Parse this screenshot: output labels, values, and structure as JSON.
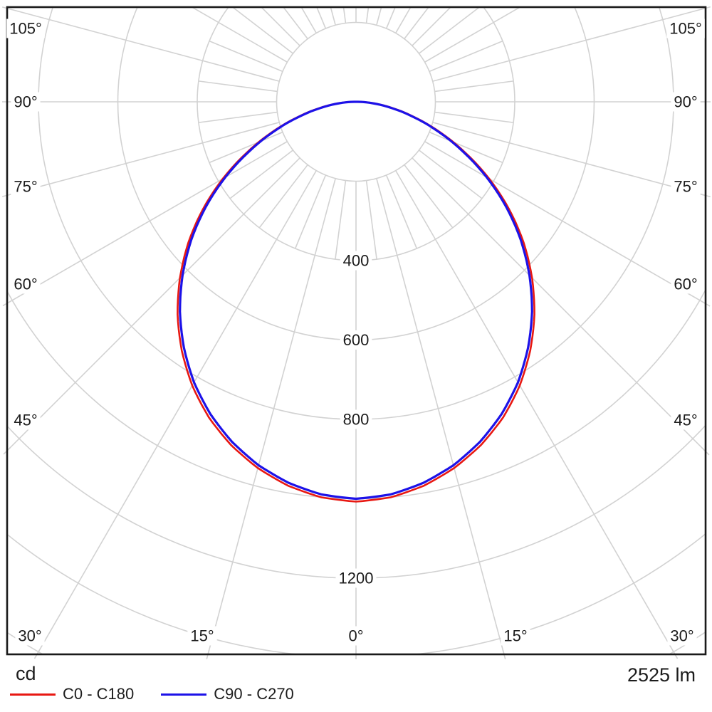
{
  "chart_data": {
    "type": "polar_intensity_distribution",
    "radial_unit": "cd",
    "luminous_flux": "2525 lm",
    "angles_deg": [
      0,
      5,
      10,
      15,
      20,
      25,
      30,
      35,
      40,
      45,
      50,
      55,
      60,
      65,
      70,
      75,
      80,
      85,
      90
    ],
    "series": [
      {
        "name": "C0 - C180",
        "color": "#e81812",
        "values_cd": [
          1004,
          997,
          979,
          952,
          917,
          874,
          822,
          762,
          696,
          624,
          548,
          467,
          384,
          301,
          224,
          153,
          93,
          43,
          5
        ]
      },
      {
        "name": "C90 - C270",
        "color": "#1d12e8",
        "values_cd": [
          1000,
          993,
          975,
          948,
          912,
          868,
          816,
          756,
          690,
          618,
          542,
          462,
          380,
          298,
          222,
          152,
          92,
          42,
          5
        ]
      }
    ],
    "grid": {
      "ring_step_cd": 200,
      "rings_cd": [
        200,
        400,
        600,
        800,
        1000,
        1200,
        1400,
        1600
      ],
      "major_angle_step_deg": 15,
      "minor_angle_step_deg": 7.5,
      "minor_lines_between_cd": [
        200,
        400
      ]
    },
    "radial_tick_labels": [
      "400",
      "600",
      "800",
      "1200"
    ],
    "radial_tick_values": [
      400,
      600,
      800,
      1200
    ],
    "angle_labels_left": [
      "105°",
      "90°",
      "75°",
      "60°",
      "45°"
    ],
    "angle_labels_right": [
      "105°",
      "90°",
      "75°",
      "60°",
      "45°"
    ],
    "angle_labels_bottom": [
      "30°",
      "15°",
      "0°",
      "15°",
      "30°"
    ]
  },
  "legend": {
    "items": [
      {
        "label": "C0 - C180",
        "color": "#e81812"
      },
      {
        "label": "C90 - C270",
        "color": "#1d12e8"
      }
    ]
  },
  "footer": {
    "unit": "cd",
    "flux": "2525 lm"
  },
  "colors": {
    "grid": "#d2d2d2",
    "border": "#1a1a1a",
    "text": "#1c1c1c",
    "background": "#ffffff",
    "c0_curve": "#e81812",
    "c90_curve": "#1d12e8"
  }
}
